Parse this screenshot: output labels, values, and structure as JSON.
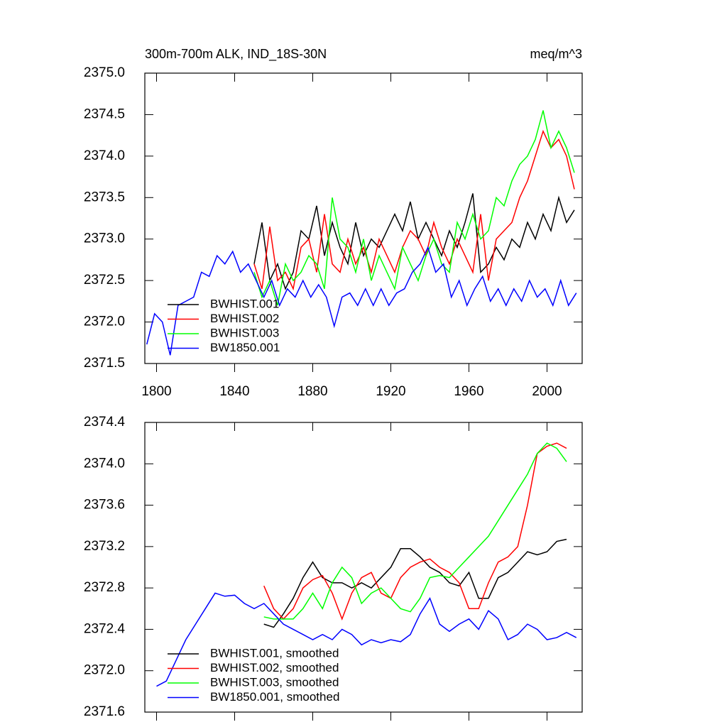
{
  "chart_data": [
    {
      "type": "line",
      "title": "300m-700m ALK, IND_18S-30N",
      "units": "meq/m^3",
      "xlim": [
        1794,
        2018
      ],
      "xticks": [
        1800,
        1840,
        1880,
        1920,
        1960,
        2000
      ],
      "xtick_labels": true,
      "ylim": [
        2371.5,
        2375.0
      ],
      "yticks": [
        {
          "value": 2371.5,
          "label": "2371.5"
        },
        {
          "value": 2372,
          "label": "2372.0"
        },
        {
          "value": 2372.5,
          "label": "2372.5"
        },
        {
          "value": 2373,
          "label": "2373.0"
        },
        {
          "value": 2373.5,
          "label": "2373.5"
        },
        {
          "value": 2374,
          "label": "2374.0"
        },
        {
          "value": 2374.5,
          "label": "2374.5"
        },
        {
          "value": 2375,
          "label": "2375.0"
        }
      ],
      "legend": "lower left",
      "series": [
        {
          "name": "BWHIST.001",
          "color": "#000000",
          "x": [
            1850,
            1854,
            1858,
            1862,
            1866,
            1870,
            1874,
            1878,
            1882,
            1886,
            1890,
            1894,
            1898,
            1902,
            1906,
            1910,
            1914,
            1918,
            1922,
            1926,
            1930,
            1934,
            1938,
            1942,
            1946,
            1950,
            1954,
            1958,
            1962,
            1966,
            1970,
            1974,
            1978,
            1982,
            1986,
            1990,
            1994,
            1998,
            2002,
            2006,
            2010,
            2014
          ],
          "values": [
            2372.7,
            2373.2,
            2372.5,
            2372.7,
            2372.4,
            2372.6,
            2373.1,
            2373.0,
            2373.4,
            2372.8,
            2373.2,
            2372.9,
            2372.7,
            2373.2,
            2372.8,
            2373.0,
            2372.9,
            2373.1,
            2373.3,
            2373.1,
            2373.45,
            2373.0,
            2373.2,
            2373.0,
            2372.8,
            2373.1,
            2372.9,
            2373.2,
            2373.55,
            2372.6,
            2372.7,
            2372.9,
            2372.75,
            2373.0,
            2372.9,
            2373.2,
            2373.0,
            2373.3,
            2373.1,
            2373.5,
            2373.2,
            2373.35
          ]
        },
        {
          "name": "BWHIST.002",
          "color": "#ff0000",
          "x": [
            1850,
            1854,
            1858,
            1862,
            1866,
            1870,
            1874,
            1878,
            1882,
            1886,
            1890,
            1894,
            1898,
            1902,
            1906,
            1910,
            1914,
            1918,
            1922,
            1926,
            1930,
            1934,
            1938,
            1942,
            1946,
            1950,
            1954,
            1958,
            1962,
            1966,
            1970,
            1974,
            1978,
            1982,
            1986,
            1990,
            1994,
            1998,
            2002,
            2006,
            2010,
            2014
          ],
          "values": [
            2372.7,
            2372.4,
            2373.15,
            2372.5,
            2372.6,
            2372.4,
            2372.9,
            2373.0,
            2372.6,
            2373.3,
            2372.7,
            2372.6,
            2373.0,
            2372.7,
            2372.9,
            2372.6,
            2373.0,
            2372.8,
            2372.6,
            2372.9,
            2373.1,
            2373.0,
            2372.8,
            2373.2,
            2372.9,
            2372.7,
            2373.0,
            2372.8,
            2372.6,
            2373.3,
            2372.5,
            2373.0,
            2373.1,
            2373.2,
            2373.5,
            2373.7,
            2374.0,
            2374.3,
            2374.1,
            2374.2,
            2374.0,
            2373.6
          ]
        },
        {
          "name": "BWHIST.003",
          "color": "#00ff00",
          "x": [
            1850,
            1854,
            1858,
            1862,
            1866,
            1870,
            1874,
            1878,
            1882,
            1886,
            1890,
            1894,
            1898,
            1902,
            1906,
            1910,
            1914,
            1918,
            1922,
            1926,
            1930,
            1934,
            1938,
            1942,
            1946,
            1950,
            1954,
            1958,
            1962,
            1966,
            1970,
            1974,
            1978,
            1982,
            1986,
            1990,
            1994,
            1998,
            2002,
            2006,
            2010,
            2014
          ],
          "values": [
            2372.6,
            2372.3,
            2372.5,
            2372.2,
            2372.7,
            2372.5,
            2372.6,
            2372.8,
            2372.7,
            2372.4,
            2373.5,
            2373.0,
            2372.9,
            2372.6,
            2373.0,
            2372.5,
            2372.8,
            2372.6,
            2372.4,
            2372.9,
            2372.7,
            2372.5,
            2372.8,
            2373.0,
            2372.7,
            2372.6,
            2373.2,
            2373.0,
            2373.3,
            2373.0,
            2373.1,
            2373.5,
            2373.4,
            2373.7,
            2373.9,
            2374.0,
            2374.2,
            2374.55,
            2374.1,
            2374.3,
            2374.1,
            2373.8
          ]
        },
        {
          "name": "BW1850.001",
          "color": "#0000ff",
          "x": [
            1795,
            1799,
            1803,
            1807,
            1811,
            1815,
            1819,
            1823,
            1827,
            1831,
            1835,
            1839,
            1843,
            1847,
            1851,
            1855,
            1859,
            1863,
            1867,
            1871,
            1875,
            1879,
            1883,
            1887,
            1891,
            1895,
            1899,
            1903,
            1907,
            1911,
            1915,
            1919,
            1923,
            1927,
            1931,
            1935,
            1939,
            1943,
            1947,
            1951,
            1955,
            1959,
            1963,
            1967,
            1971,
            1975,
            1979,
            1983,
            1987,
            1991,
            1995,
            1999,
            2003,
            2007,
            2011,
            2015
          ],
          "values": [
            2371.73,
            2372.1,
            2372.0,
            2371.6,
            2372.2,
            2372.25,
            2372.3,
            2372.6,
            2372.55,
            2372.8,
            2372.7,
            2372.85,
            2372.6,
            2372.7,
            2372.5,
            2372.3,
            2372.5,
            2372.2,
            2372.4,
            2372.3,
            2372.5,
            2372.3,
            2372.45,
            2372.3,
            2371.95,
            2372.3,
            2372.35,
            2372.2,
            2372.4,
            2372.2,
            2372.4,
            2372.2,
            2372.35,
            2372.4,
            2372.6,
            2372.7,
            2372.9,
            2372.6,
            2372.7,
            2372.3,
            2372.5,
            2372.2,
            2372.4,
            2372.55,
            2372.25,
            2372.4,
            2372.2,
            2372.4,
            2372.25,
            2372.5,
            2372.3,
            2372.4,
            2372.2,
            2372.5,
            2372.2,
            2372.35
          ]
        }
      ]
    },
    {
      "type": "line",
      "xlim": [
        1794,
        2018
      ],
      "xticks": [
        1800,
        1840,
        1880,
        1920,
        1960,
        2000
      ],
      "xtick_labels": false,
      "ylim": [
        2371.6,
        2374.4
      ],
      "yticks": [
        2371.6,
        {
          "value": 2372,
          "label": "2372.0"
        },
        2372.4,
        2372.8,
        2373.2,
        2373.6,
        {
          "value": 2374,
          "label": "2374.0"
        },
        2374.4
      ],
      "legend": "lower left",
      "series": [
        {
          "name": "BWHIST.001, smoothed",
          "color": "#000000",
          "x": [
            1855,
            1860,
            1865,
            1870,
            1875,
            1880,
            1885,
            1890,
            1895,
            1900,
            1905,
            1910,
            1915,
            1920,
            1925,
            1930,
            1935,
            1940,
            1945,
            1950,
            1955,
            1960,
            1965,
            1970,
            1975,
            1980,
            1985,
            1990,
            1995,
            2000,
            2005,
            2010
          ],
          "values": [
            2372.45,
            2372.42,
            2372.55,
            2372.7,
            2372.9,
            2373.05,
            2372.9,
            2372.85,
            2372.85,
            2372.8,
            2372.85,
            2372.8,
            2372.9,
            2373.0,
            2373.18,
            2373.18,
            2373.1,
            2373.0,
            2372.95,
            2372.85,
            2372.82,
            2372.95,
            2372.7,
            2372.7,
            2372.9,
            2372.95,
            2373.05,
            2373.15,
            2373.12,
            2373.15,
            2373.25,
            2373.27
          ]
        },
        {
          "name": "BWHIST.002, smoothed",
          "color": "#ff0000",
          "x": [
            1855,
            1860,
            1865,
            1870,
            1875,
            1880,
            1885,
            1890,
            1895,
            1900,
            1905,
            1910,
            1915,
            1920,
            1925,
            1930,
            1935,
            1940,
            1945,
            1950,
            1955,
            1960,
            1965,
            1970,
            1975,
            1980,
            1985,
            1990,
            1995,
            2000,
            2005,
            2010
          ],
          "values": [
            2372.82,
            2372.6,
            2372.5,
            2372.6,
            2372.8,
            2372.88,
            2372.92,
            2372.75,
            2372.5,
            2372.75,
            2372.9,
            2372.95,
            2372.75,
            2372.7,
            2372.9,
            2373.0,
            2373.05,
            2373.08,
            2373.0,
            2372.95,
            2372.85,
            2372.6,
            2372.6,
            2372.85,
            2373.05,
            2373.1,
            2373.2,
            2373.6,
            2374.1,
            2374.17,
            2374.2,
            2374.15
          ]
        },
        {
          "name": "BWHIST.003, smoothed",
          "color": "#00ff00",
          "x": [
            1855,
            1860,
            1865,
            1870,
            1875,
            1880,
            1885,
            1890,
            1895,
            1900,
            1905,
            1910,
            1915,
            1920,
            1925,
            1930,
            1935,
            1940,
            1945,
            1950,
            1955,
            1960,
            1965,
            1970,
            1975,
            1980,
            1985,
            1990,
            1995,
            2000,
            2005,
            2010
          ],
          "values": [
            2372.52,
            2372.5,
            2372.5,
            2372.5,
            2372.6,
            2372.75,
            2372.6,
            2372.85,
            2373.0,
            2372.9,
            2372.65,
            2372.75,
            2372.8,
            2372.7,
            2372.6,
            2372.57,
            2372.7,
            2372.9,
            2372.92,
            2372.9,
            2373.0,
            2373.1,
            2373.2,
            2373.3,
            2373.45,
            2373.6,
            2373.75,
            2373.9,
            2374.1,
            2374.2,
            2374.15,
            2374.02
          ]
        },
        {
          "name": "BW1850.001, smoothed",
          "color": "#0000ff",
          "x": [
            1800,
            1805,
            1810,
            1815,
            1820,
            1825,
            1830,
            1835,
            1840,
            1845,
            1850,
            1855,
            1860,
            1865,
            1870,
            1875,
            1880,
            1885,
            1890,
            1895,
            1900,
            1905,
            1910,
            1915,
            1920,
            1925,
            1930,
            1935,
            1940,
            1945,
            1950,
            1955,
            1960,
            1965,
            1970,
            1975,
            1980,
            1985,
            1990,
            1995,
            2000,
            2005,
            2010,
            2015
          ],
          "values": [
            2371.85,
            2371.9,
            2372.1,
            2372.3,
            2372.45,
            2372.6,
            2372.75,
            2372.72,
            2372.73,
            2372.65,
            2372.6,
            2372.65,
            2372.55,
            2372.45,
            2372.4,
            2372.35,
            2372.3,
            2372.35,
            2372.3,
            2372.4,
            2372.35,
            2372.25,
            2372.3,
            2372.27,
            2372.3,
            2372.28,
            2372.35,
            2372.55,
            2372.7,
            2372.45,
            2372.38,
            2372.45,
            2372.5,
            2372.4,
            2372.58,
            2372.5,
            2372.3,
            2372.35,
            2372.45,
            2372.4,
            2372.3,
            2372.32,
            2372.37,
            2372.32
          ]
        }
      ]
    }
  ]
}
